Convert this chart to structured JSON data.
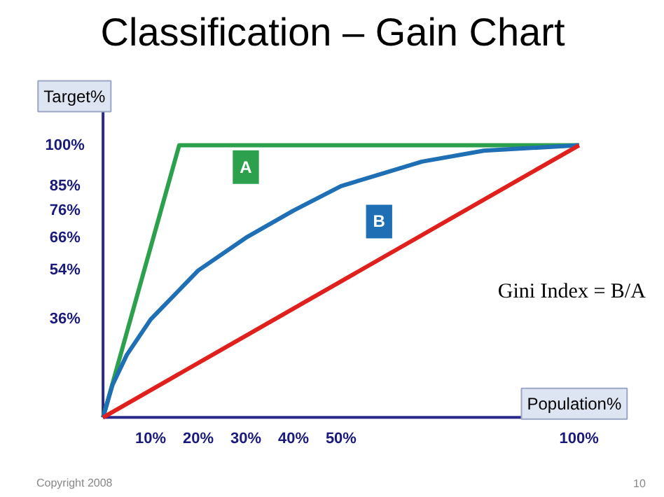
{
  "chart_data": {
    "type": "line",
    "title": "Classification – Gain Chart",
    "xlabel": "Population%",
    "ylabel": "Target%",
    "x": [
      0,
      2,
      5,
      10,
      20,
      30,
      40,
      50,
      67,
      80,
      100
    ],
    "series": [
      {
        "color": "#2ca04c",
        "x": [
          0,
          16,
          100
        ],
        "values": [
          0,
          100,
          100
        ]
      },
      {
        "color": "#1f6fb4",
        "values": [
          0,
          12,
          23,
          36,
          54,
          66,
          76,
          85,
          94,
          98,
          100
        ]
      },
      {
        "color": "#e0201c",
        "x": [
          0,
          100
        ],
        "values": [
          0,
          100
        ]
      }
    ],
    "xlim": [
      0,
      110
    ],
    "ylim": [
      0,
      123
    ],
    "xticks": [
      {
        "value": 10,
        "label": "10%"
      },
      {
        "value": 20,
        "label": "20%"
      },
      {
        "value": 30,
        "label": "30%"
      },
      {
        "value": 40,
        "label": "40%"
      },
      {
        "value": 50,
        "label": "50%"
      },
      {
        "value": 100,
        "label": "100%"
      }
    ],
    "yticks": [
      {
        "value": 36,
        "label": "36%"
      },
      {
        "value": 54,
        "label": "54%"
      },
      {
        "value": 66,
        "label": "66%"
      },
      {
        "value": 76,
        "label": "76%"
      },
      {
        "value": 85,
        "label": "85%"
      },
      {
        "value": 100,
        "label": "100%"
      }
    ],
    "grid": false,
    "marker": "none",
    "line_style": "solid",
    "annotations": [
      {
        "text": "A",
        "x": 30,
        "y": 92
      },
      {
        "text": "B",
        "x": 58,
        "y": 72
      },
      "Gini Index = B/A",
      "Copyright 2008",
      "10"
    ]
  }
}
